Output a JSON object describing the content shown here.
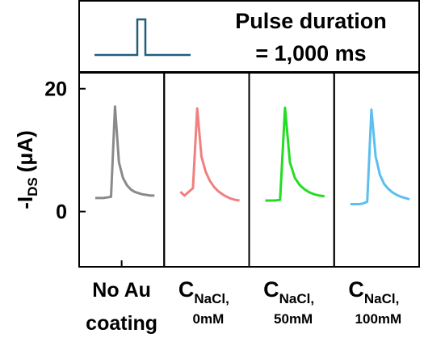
{
  "chart_data": {
    "type": "line",
    "legend": {
      "title": "Pulse duration",
      "subtitle": "= 1,000 ms"
    },
    "ylabel": {
      "main": "-I",
      "sub": "DS",
      "unit": "(μA)"
    },
    "ylim": [
      -9,
      22.6
    ],
    "yticks": [
      0,
      20
    ],
    "series": [
      {
        "label": [
          "No Au",
          "coating"
        ],
        "color": "#8a8a8a",
        "values": [
          2.2,
          2.2,
          2.2,
          2.3,
          2.4,
          17.1,
          8,
          5.5,
          4.3,
          3.6,
          3.2,
          3.0,
          2.8,
          2.7,
          2.6,
          2.6
        ]
      },
      {
        "label": [
          "C",
          "NaCl,",
          "0mM"
        ],
        "color": "#f08080",
        "values": [
          3.2,
          2.6,
          3.2,
          3.8,
          16.8,
          9,
          6.5,
          5,
          4,
          3.3,
          2.8,
          2.4,
          2.1,
          1.9,
          1.8
        ]
      },
      {
        "label": [
          "C",
          "NaCl,",
          "50mM"
        ],
        "color": "#22dd22",
        "values": [
          1.8,
          1.8,
          1.8,
          1.9,
          16.9,
          8,
          5.5,
          4.3,
          3.6,
          3.1,
          2.8,
          2.6,
          2.5
        ]
      },
      {
        "label": [
          "C",
          "NaCl,",
          "100mM"
        ],
        "color": "#5bbfef",
        "values": [
          1.2,
          1.2,
          1.2,
          1.3,
          1.6,
          16.6,
          9,
          6,
          4.5,
          3.7,
          3.1,
          2.7,
          2.4,
          2.2,
          2.0
        ]
      }
    ]
  }
}
